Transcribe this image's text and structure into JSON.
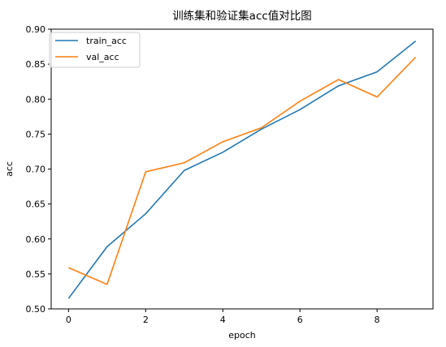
{
  "chart_data": {
    "type": "line",
    "title": "训练集和验证集acc值对比图",
    "xlabel": "epoch",
    "ylabel": "acc",
    "x": [
      0,
      1,
      2,
      3,
      4,
      5,
      6,
      7,
      8,
      9
    ],
    "xlim": [
      -0.45,
      9.45
    ],
    "ylim": [
      0.5,
      0.9
    ],
    "xticks": [
      0,
      2,
      4,
      6,
      8
    ],
    "xtick_labels": [
      "0",
      "2",
      "4",
      "6",
      "8"
    ],
    "yticks": [
      0.5,
      0.55,
      0.6,
      0.65,
      0.7,
      0.75,
      0.8,
      0.85,
      0.9
    ],
    "ytick_labels": [
      "0.50",
      "0.55",
      "0.60",
      "0.65",
      "0.70",
      "0.75",
      "0.80",
      "0.85",
      "0.90"
    ],
    "grid": false,
    "legend_position": "top-left",
    "series": [
      {
        "name": "train_acc",
        "color": "#1f77b4",
        "values": [
          0.515,
          0.589,
          0.636,
          0.698,
          0.724,
          0.757,
          0.785,
          0.819,
          0.839,
          0.883
        ]
      },
      {
        "name": "val_acc",
        "color": "#ff7f0e",
        "values": [
          0.559,
          0.535,
          0.696,
          0.709,
          0.739,
          0.759,
          0.797,
          0.828,
          0.803,
          0.86
        ]
      }
    ]
  }
}
